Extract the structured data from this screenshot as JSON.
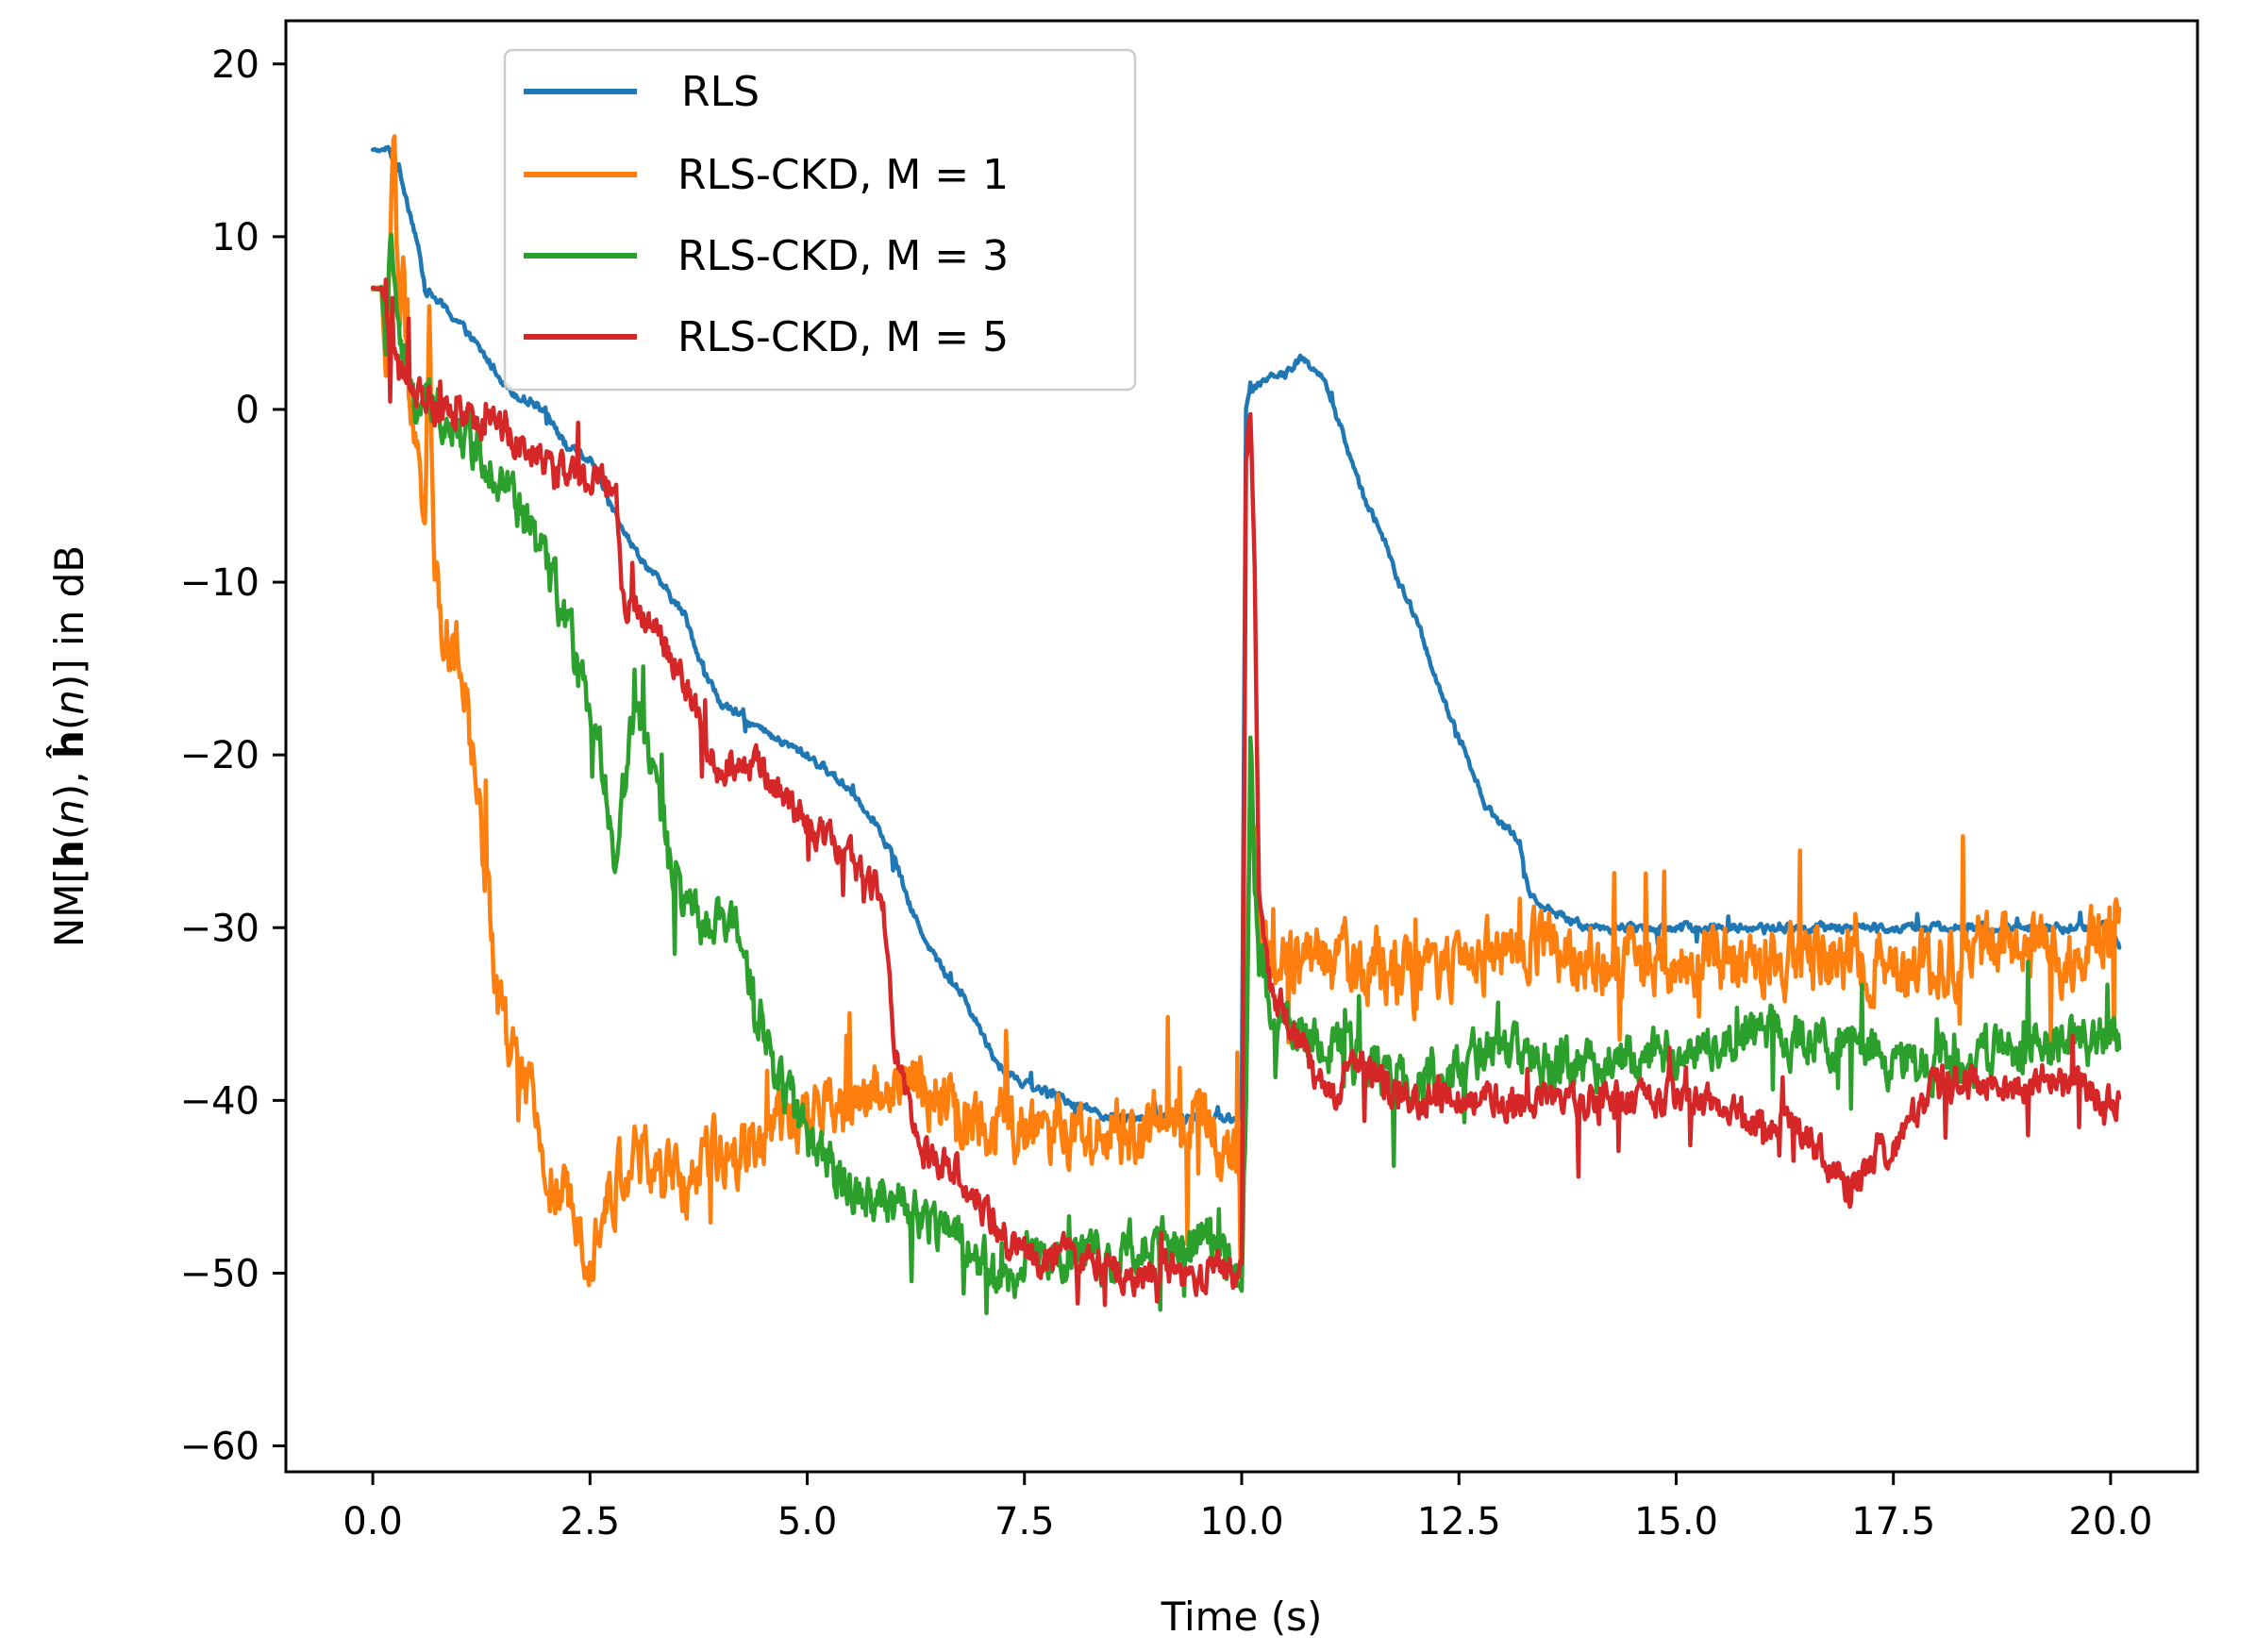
{
  "chart_data": {
    "type": "line",
    "title": "",
    "xlabel": "Time (s)",
    "ylabel": "NM[h(n), ĥ(n)] in dB",
    "ylabel_parts": {
      "prefix": "NM[",
      "h": "h",
      "n1": "n",
      "sep": "), ",
      "hhat": "ĥ",
      "n2": "n",
      "suffix": ")] in dB",
      "open_paren": "("
    },
    "xlim": [
      -1.0,
      21.0
    ],
    "ylim": [
      -61.5,
      22.5
    ],
    "xticks": [
      0.0,
      2.5,
      5.0,
      7.5,
      10.0,
      12.5,
      15.0,
      17.5,
      20.0
    ],
    "xtick_labels": [
      "0.0",
      "2.5",
      "5.0",
      "7.5",
      "10.0",
      "12.5",
      "15.0",
      "17.5",
      "20.0"
    ],
    "yticks": [
      20,
      10,
      0,
      -10,
      -20,
      -30,
      -40,
      -50,
      -60
    ],
    "ytick_labels": [
      "20",
      "10",
      "0",
      "−10",
      "−20",
      "−30",
      "−40",
      "−50",
      "−60"
    ],
    "grid": false,
    "legend_position": "upper-left-center",
    "series": [
      {
        "name": "RLS",
        "color": "#1f77b4",
        "noise": 0.45,
        "x": [
          0,
          0.2,
          0.25,
          0.3,
          0.5,
          0.6,
          0.8,
          1.0,
          1.3,
          1.6,
          2.0,
          2.2,
          2.5,
          2.8,
          3.0,
          3.3,
          3.6,
          3.8,
          4.0,
          4.3,
          4.6,
          5.0,
          5.5,
          5.8,
          6.0,
          6.2,
          6.5,
          6.8,
          7.0,
          7.2,
          7.5,
          8.0,
          8.5,
          9.0,
          9.5,
          9.9,
          10.0,
          10.05,
          10.1,
          10.3,
          10.5,
          10.7,
          10.9,
          11.0,
          11.2,
          11.4,
          11.6,
          11.8,
          12.0,
          12.2,
          12.4,
          12.6,
          12.8,
          13.0,
          13.2,
          13.3,
          13.5,
          14.0,
          15.0,
          16.0,
          17.0,
          18.0,
          19.0,
          20.0,
          20.1
        ],
        "y": [
          15,
          15,
          14,
          14,
          10,
          7,
          6,
          5,
          3,
          1,
          0,
          -2,
          -3,
          -6,
          -8,
          -10,
          -12,
          -15,
          -17,
          -18,
          -19,
          -20,
          -22,
          -24,
          -26,
          -29,
          -32,
          -34,
          -36,
          -38,
          -39,
          -40,
          -41,
          -41,
          -41,
          -41,
          -41,
          0,
          1,
          2,
          2,
          3,
          2,
          1,
          -2,
          -5,
          -7,
          -10,
          -12,
          -15,
          -18,
          -20,
          -23,
          -24,
          -25,
          -28,
          -29,
          -30,
          -30,
          -30,
          -30,
          -30,
          -30,
          -30,
          -31
        ]
      },
      {
        "name": "RLS-CKD, M = 1",
        "color": "#ff7f0e",
        "noise": 3.5,
        "x": [
          0,
          0.1,
          0.15,
          0.2,
          0.25,
          0.3,
          0.35,
          0.4,
          0.5,
          0.6,
          0.65,
          0.7,
          0.8,
          1.0,
          1.1,
          1.2,
          1.3,
          1.4,
          1.5,
          1.8,
          2.0,
          2.2,
          2.5,
          2.8,
          3.0,
          3.5,
          3.8,
          4.0,
          4.5,
          5.0,
          5.5,
          6.0,
          6.5,
          7.0,
          7.5,
          8.0,
          8.5,
          9.0,
          9.5,
          9.9,
          10.0,
          10.05,
          10.1,
          10.15,
          10.2,
          10.4,
          10.6,
          11.0,
          11.5,
          12.0,
          12.5,
          13.0,
          13.5,
          14.0,
          15.0,
          16.0,
          17.0,
          18.0,
          19.0,
          19.5,
          20.0,
          20.1
        ],
        "y": [
          7,
          7,
          2,
          10,
          17,
          5,
          8,
          1,
          -3,
          -5,
          6,
          -10,
          -12,
          -15,
          -18,
          -22,
          -27,
          -32,
          -36,
          -40,
          -44,
          -46,
          -48,
          -45,
          -43,
          -45,
          -44,
          -43,
          -42,
          -41,
          -40,
          -39,
          -40,
          -41,
          -42,
          -42,
          -42,
          -42,
          -41,
          -43,
          -43,
          -40,
          -20,
          -26,
          -30,
          -31,
          -32,
          -32,
          -32,
          -33,
          -32,
          -31,
          -31,
          -32,
          -32,
          -32,
          -32,
          -32,
          -31,
          -32,
          -30,
          -30
        ]
      },
      {
        "name": "RLS-CKD, M = 3",
        "color": "#2ca02c",
        "noise": 2.6,
        "x": [
          0,
          0.1,
          0.15,
          0.2,
          0.25,
          0.3,
          0.4,
          0.5,
          0.6,
          0.8,
          1.0,
          1.2,
          1.5,
          1.8,
          2.0,
          2.2,
          2.5,
          2.7,
          2.8,
          3.0,
          3.2,
          3.4,
          3.6,
          3.8,
          4.0,
          4.2,
          4.4,
          4.6,
          4.8,
          5.0,
          5.5,
          6.0,
          6.5,
          7.0,
          7.2,
          7.5,
          8.0,
          8.5,
          9.0,
          9.5,
          9.9,
          10.0,
          10.05,
          10.1,
          10.15,
          10.2,
          10.4,
          10.6,
          11.0,
          11.5,
          12.0,
          12.5,
          13.0,
          13.5,
          14.0,
          15.0,
          16.0,
          17.0,
          18.0,
          19.0,
          20.0,
          20.1
        ],
        "y": [
          7,
          7,
          4,
          10,
          8,
          4,
          2,
          0,
          0,
          0,
          -1,
          -2,
          -4,
          -7,
          -9,
          -12,
          -18,
          -22,
          -26,
          -17,
          -20,
          -26,
          -29,
          -30,
          -30,
          -30,
          -34,
          -38,
          -40,
          -42,
          -45,
          -46,
          -47,
          -49,
          -51,
          -49,
          -49,
          -49,
          -48,
          -48,
          -49,
          -50,
          -40,
          -18,
          -28,
          -32,
          -35,
          -36,
          -37,
          -38,
          -39,
          -38,
          -37,
          -38,
          -38,
          -37,
          -36,
          -37,
          -38,
          -37,
          -36,
          -36
        ]
      },
      {
        "name": "RLS-CKD, M = 5",
        "color": "#d62728",
        "noise": 1.8,
        "x": [
          0,
          0.1,
          0.15,
          0.2,
          0.25,
          0.3,
          0.5,
          0.8,
          1.0,
          1.5,
          2.0,
          2.5,
          2.8,
          2.9,
          3.0,
          3.3,
          3.6,
          3.8,
          4.0,
          4.2,
          4.5,
          5.0,
          5.3,
          5.5,
          5.8,
          5.9,
          6.0,
          6.3,
          6.7,
          7.0,
          7.3,
          7.6,
          8.0,
          8.5,
          9.0,
          9.5,
          9.9,
          9.95,
          10.0,
          10.05,
          10.1,
          10.15,
          10.2,
          10.3,
          10.5,
          10.8,
          11.0,
          11.3,
          11.6,
          12.0,
          12.5,
          13.0,
          13.5,
          14.0,
          15.0,
          16.0,
          16.5,
          17.0,
          17.3,
          17.6,
          18.0,
          18.5,
          19.0,
          19.5,
          20.0,
          20.1
        ],
        "y": [
          7,
          7,
          6,
          3,
          4,
          2,
          1,
          0,
          0,
          -1,
          -3,
          -4,
          -5,
          -12,
          -11,
          -13,
          -16,
          -19,
          -21,
          -20,
          -21,
          -24,
          -25,
          -26,
          -28,
          -30,
          -37,
          -43,
          -44,
          -46,
          -48,
          -49,
          -49,
          -50,
          -50,
          -50,
          -50,
          -50,
          -50,
          -3,
          0,
          -10,
          -28,
          -33,
          -35,
          -38,
          -40,
          -38,
          -39,
          -40,
          -40,
          -40,
          -40,
          -40,
          -40,
          -41,
          -42,
          -45,
          -43,
          -42,
          -39,
          -39,
          -39,
          -39,
          -40,
          -40
        ]
      }
    ]
  }
}
